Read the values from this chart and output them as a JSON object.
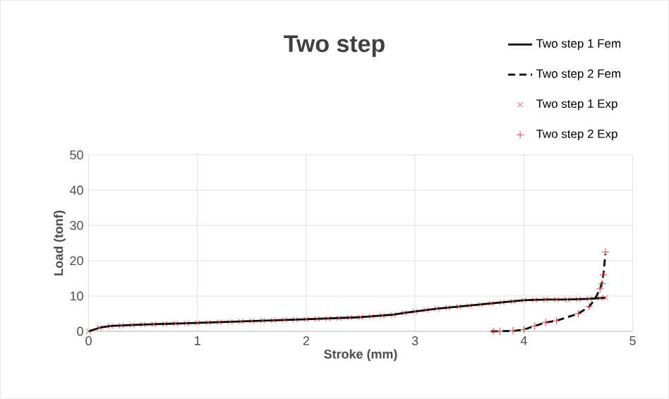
{
  "chart_data": {
    "type": "line",
    "title": "Two step",
    "xlabel": "Stroke (mm)",
    "ylabel": "Load (tonf)",
    "xlim": [
      0,
      5
    ],
    "xticks": [
      0,
      1,
      2,
      3,
      4,
      5
    ],
    "ylim": [
      0,
      50
    ],
    "yticks": [
      0,
      10,
      20,
      30,
      40,
      50
    ],
    "grid": true,
    "legend": "top right",
    "series": [
      {
        "name": "Two step 1 Fem",
        "type": "line",
        "line_style": "solid",
        "color": "#000000",
        "x": [
          0,
          0.1,
          0.2,
          0.5,
          1.0,
          1.5,
          2.0,
          2.5,
          2.8,
          2.9,
          3.0,
          3.2,
          3.5,
          3.8,
          4.0,
          4.2,
          4.4,
          4.6,
          4.75
        ],
        "values": [
          0,
          1.0,
          1.5,
          1.9,
          2.4,
          2.9,
          3.4,
          4.0,
          4.7,
          5.2,
          5.6,
          6.4,
          7.3,
          8.2,
          8.8,
          9.0,
          9.0,
          9.2,
          9.5
        ]
      },
      {
        "name": "Two step 2 Fem",
        "type": "line",
        "line_style": "dashed",
        "color": "#000000",
        "x": [
          3.7,
          3.9,
          4.0,
          4.1,
          4.2,
          4.3,
          4.4,
          4.5,
          4.6,
          4.65,
          4.7,
          4.72,
          4.73,
          4.75
        ],
        "values": [
          0,
          0.1,
          0.5,
          1.5,
          2.5,
          3.0,
          4.0,
          5.0,
          7.0,
          9.0,
          12.0,
          14.0,
          16.0,
          22.0
        ]
      },
      {
        "name": "Two step 1 Exp",
        "type": "scatter",
        "marker": "cross",
        "color": "#e03c3c",
        "x": [
          0,
          0.1,
          0.2,
          0.3,
          0.4,
          0.5,
          0.6,
          0.7,
          0.8,
          0.9,
          1.0,
          1.1,
          1.2,
          1.3,
          1.4,
          1.5,
          1.6,
          1.7,
          1.8,
          1.9,
          2.0,
          2.1,
          2.2,
          2.3,
          2.4,
          2.5,
          2.6,
          2.7,
          2.8,
          2.9,
          3.0,
          3.1,
          3.2,
          3.3,
          3.4,
          3.5,
          3.6,
          3.7,
          3.8,
          3.9,
          4.0,
          4.1,
          4.2,
          4.3,
          4.4,
          4.5,
          4.6,
          4.7,
          4.75
        ],
        "values": [
          0,
          1.0,
          1.5,
          1.6,
          1.8,
          1.9,
          2.0,
          2.1,
          2.2,
          2.3,
          2.4,
          2.5,
          2.6,
          2.7,
          2.8,
          2.9,
          3.0,
          3.1,
          3.2,
          3.3,
          3.4,
          3.5,
          3.6,
          3.7,
          3.9,
          4.0,
          4.2,
          4.4,
          4.7,
          5.2,
          5.6,
          6.0,
          6.4,
          6.7,
          7.0,
          7.3,
          7.6,
          7.9,
          8.2,
          8.5,
          8.8,
          8.9,
          9.0,
          9.0,
          9.0,
          9.1,
          9.2,
          9.4,
          9.5
        ]
      },
      {
        "name": "Two step 2 Exp",
        "type": "scatter",
        "marker": "plus",
        "color": "#e03c3c",
        "x": [
          3.72,
          3.78,
          3.9,
          4.0,
          4.1,
          4.2,
          4.3,
          4.5,
          4.6,
          4.7,
          4.72,
          4.73,
          4.75
        ],
        "values": [
          0,
          0,
          0.2,
          0.5,
          1.5,
          2.5,
          3.0,
          5.0,
          7.0,
          12.0,
          13.5,
          16.0,
          22.5
        ]
      }
    ]
  }
}
